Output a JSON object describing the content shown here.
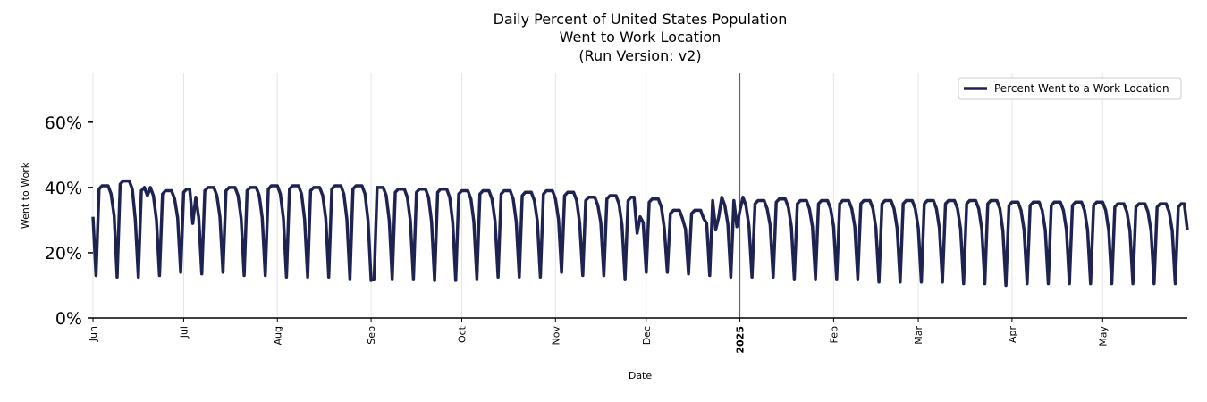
{
  "chart_data": {
    "type": "line",
    "title_lines": [
      "Daily Percent of United States Population",
      "Went to Work Location",
      "(Run Version: v2)"
    ],
    "xlabel": "Date",
    "ylabel": "Went to Work",
    "ylim": [
      0,
      75
    ],
    "yticks": [
      0,
      20,
      40,
      60
    ],
    "ytick_labels": [
      "0%",
      "20%",
      "40%",
      "60%"
    ],
    "x_start": "2024-06-01",
    "x_end": "2025-05-29",
    "xtick_labels": [
      {
        "date": "2024-06-01",
        "label": "Jun",
        "bold": false
      },
      {
        "date": "2024-07-01",
        "label": "Jul",
        "bold": false
      },
      {
        "date": "2024-08-01",
        "label": "Aug",
        "bold": false
      },
      {
        "date": "2024-09-01",
        "label": "Sep",
        "bold": false
      },
      {
        "date": "2024-10-01",
        "label": "Oct",
        "bold": false
      },
      {
        "date": "2024-11-01",
        "label": "Nov",
        "bold": false
      },
      {
        "date": "2024-12-01",
        "label": "Dec",
        "bold": false
      },
      {
        "date": "2025-01-01",
        "label": "2025",
        "bold": true
      },
      {
        "date": "2025-02-01",
        "label": "Feb",
        "bold": false
      },
      {
        "date": "2025-03-01",
        "label": "Mar",
        "bold": false
      },
      {
        "date": "2025-04-01",
        "label": "Apr",
        "bold": false
      },
      {
        "date": "2025-05-01",
        "label": "May",
        "bold": false
      }
    ],
    "legend_position": "top-right",
    "grid": "vertical",
    "year_marker": "2025-01-01",
    "series": [
      {
        "name": "Percent Went to a Work Location",
        "color": "#1f2352",
        "pattern_note": "daily values; weekday plateau and weekend trough per week",
        "weekly_weekday_levels": [
          40.5,
          42.0,
          40.0,
          39.0,
          39.5,
          40.0,
          40.0,
          40.0,
          40.5,
          40.5,
          40.0,
          40.5,
          40.5,
          40.0,
          39.5,
          39.5,
          39.5,
          39.0,
          39.0,
          39.0,
          38.5,
          39.0,
          38.5,
          37.0,
          37.5,
          37.0,
          36.5,
          33.0,
          33.0,
          37.0,
          37.0,
          36.0,
          36.5,
          36.0,
          36.0,
          36.0,
          36.0,
          36.0,
          36.0,
          36.0,
          36.0,
          36.0,
          36.0,
          35.5,
          35.5,
          35.5,
          35.5,
          35.5,
          35.0,
          35.0,
          35.0,
          35.0
        ],
        "weekly_weekend_levels": [
          13.0,
          12.5,
          12.5,
          13.0,
          14.0,
          13.5,
          14.0,
          13.0,
          13.0,
          12.5,
          12.5,
          12.5,
          12.0,
          11.5,
          12.0,
          12.0,
          11.5,
          11.5,
          12.0,
          12.5,
          12.5,
          12.5,
          14.0,
          13.0,
          13.0,
          12.0,
          14.0,
          14.0,
          13.5,
          13.0,
          12.5,
          12.5,
          12.5,
          12.0,
          12.0,
          12.0,
          12.0,
          11.0,
          11.0,
          11.0,
          11.0,
          10.5,
          10.5,
          10.0,
          10.5,
          10.5,
          10.5,
          10.5,
          10.5,
          10.5,
          10.5,
          10.5
        ],
        "holiday_dips": [
          {
            "date": "2024-06-19",
            "value": 37.5
          },
          {
            "date": "2024-07-04",
            "value": 29.0
          },
          {
            "date": "2024-09-02",
            "value": 12.0
          },
          {
            "date": "2024-11-28",
            "value": 26.0
          },
          {
            "date": "2024-11-29",
            "value": 31.0
          },
          {
            "date": "2024-12-24",
            "value": 27.0
          },
          {
            "date": "2024-12-25",
            "value": 31.0
          },
          {
            "date": "2024-12-31",
            "value": 28.0
          },
          {
            "date": "2025-01-01",
            "value": 33.0
          }
        ]
      }
    ]
  }
}
